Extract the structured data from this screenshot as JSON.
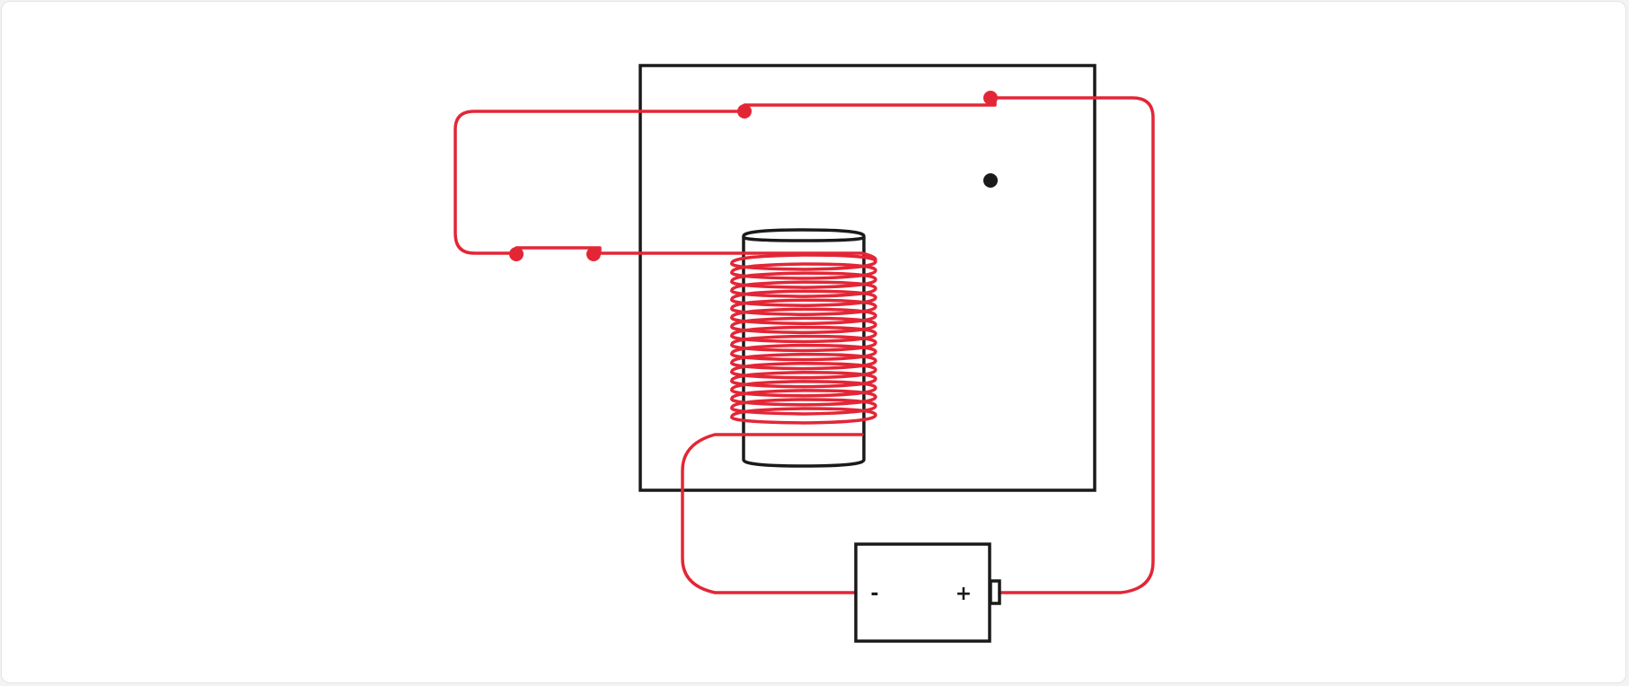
{
  "colors": {
    "wire": "#e32636",
    "outline": "#1a1a1a",
    "background": "#ffffff"
  },
  "battery": {
    "negative_label": "-",
    "positive_label": "+"
  },
  "coil": {
    "turns": 18
  }
}
